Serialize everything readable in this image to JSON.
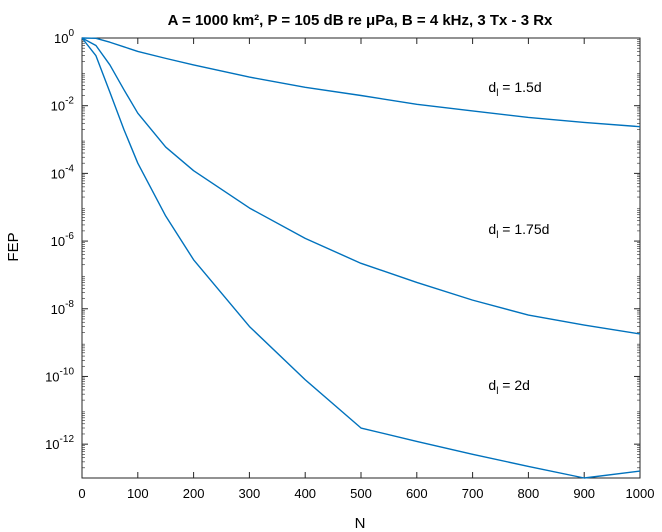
{
  "chart_data": {
    "type": "line",
    "title": "A = 1000 km², P = 105 dB re μPa, B = 4 kHz, 3 Tx - 3 Rx",
    "xlabel": "N",
    "ylabel": "FEP",
    "xlim": [
      0,
      1000
    ],
    "ylim": [
      1e-13,
      1
    ],
    "yscale": "log",
    "grid": false,
    "x_ticks": [
      0,
      100,
      200,
      300,
      400,
      500,
      600,
      700,
      800,
      900,
      1000
    ],
    "y_ticks": [
      0,
      -2,
      -4,
      -6,
      -8,
      -10,
      -12
    ],
    "series": [
      {
        "name": "d_l = 1.5d",
        "color": "#0072BD",
        "x": [
          0,
          25,
          50,
          75,
          100,
          150,
          200,
          300,
          400,
          500,
          600,
          700,
          800,
          900,
          1000
        ],
        "y": [
          1,
          0.98,
          0.75,
          0.55,
          0.4,
          0.25,
          0.16,
          0.07,
          0.035,
          0.02,
          0.011,
          0.007,
          0.0045,
          0.0032,
          0.0024
        ]
      },
      {
        "name": "d_l = 1.75d",
        "color": "#0072BD",
        "x": [
          0,
          25,
          50,
          75,
          100,
          150,
          200,
          300,
          400,
          500,
          600,
          700,
          800,
          900,
          1000
        ],
        "y": [
          1,
          0.6,
          0.16,
          0.03,
          0.006,
          0.0006,
          0.00012,
          9.5e-06,
          1.2e-06,
          2.2e-07,
          6e-08,
          1.8e-08,
          6.5e-09,
          3.3e-09,
          1.8e-09
        ]
      },
      {
        "name": "d_l = 2d",
        "color": "#0072BD",
        "x": [
          0,
          25,
          50,
          75,
          100,
          150,
          200,
          300,
          400,
          500,
          600,
          700,
          800,
          900,
          1000
        ],
        "y": [
          1,
          0.3,
          0.025,
          0.002,
          0.0002,
          5.5e-06,
          2.8e-07,
          3e-09,
          8e-11,
          3e-12,
          1.2e-12,
          5e-13,
          2.2e-13,
          1e-13,
          1.6e-13
        ]
      }
    ],
    "annotations": [
      {
        "base": "d",
        "sub": "l",
        "rest": " = 1.5d",
        "x": 800,
        "y": 0.025
      },
      {
        "base": "d",
        "sub": "l",
        "rest": " = 1.75d",
        "x": 800,
        "y": 1.6e-06
      },
      {
        "base": "d",
        "sub": "l",
        "rest": " = 2d",
        "x": 800,
        "y": 4e-11
      }
    ]
  }
}
